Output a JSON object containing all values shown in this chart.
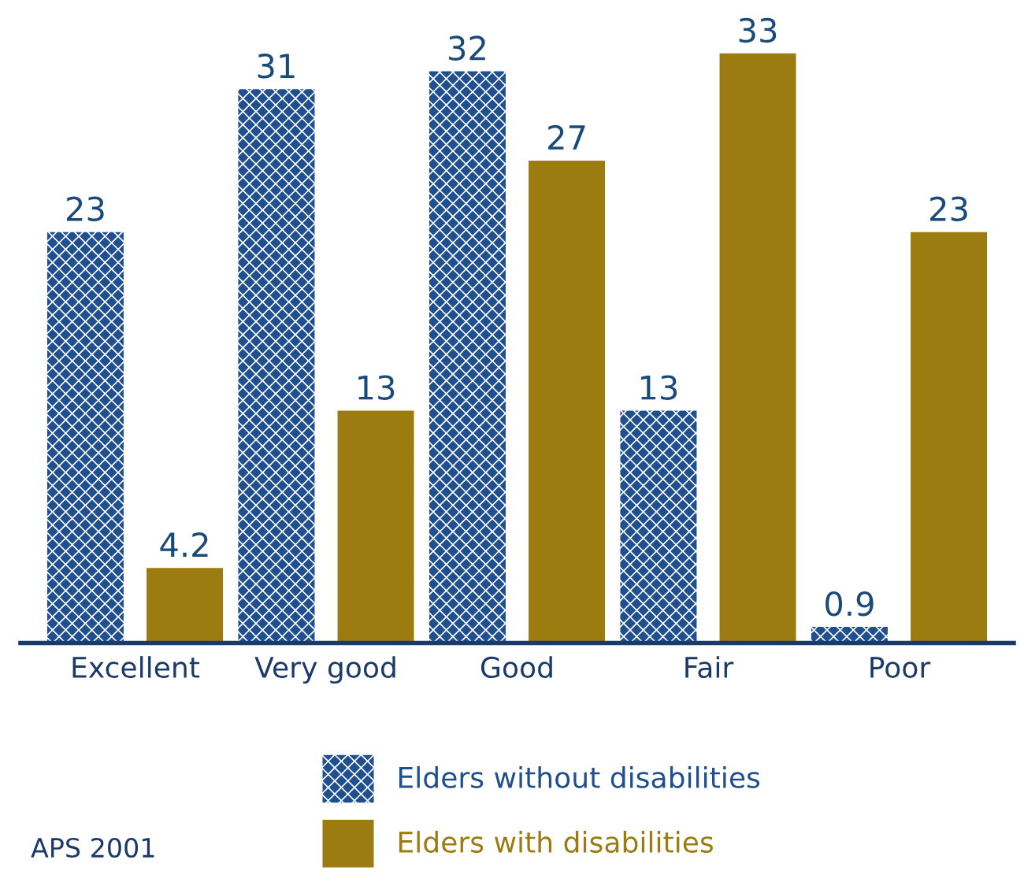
{
  "chart_data": {
    "type": "bar",
    "categories": [
      "Excellent",
      "Very good",
      "Good",
      "Fair",
      "Poor"
    ],
    "series": [
      {
        "name": "Elders without disabilities",
        "color": "#1f4f8f",
        "values": [
          23,
          31,
          32,
          13,
          0.9
        ]
      },
      {
        "name": "Elders with disabilities",
        "color": "#9c7b10",
        "values": [
          4.2,
          13,
          27,
          33,
          23
        ]
      }
    ],
    "data_labels": true,
    "legend": "bottom",
    "grid": false,
    "annotations": [
      "APS 2001"
    ]
  }
}
